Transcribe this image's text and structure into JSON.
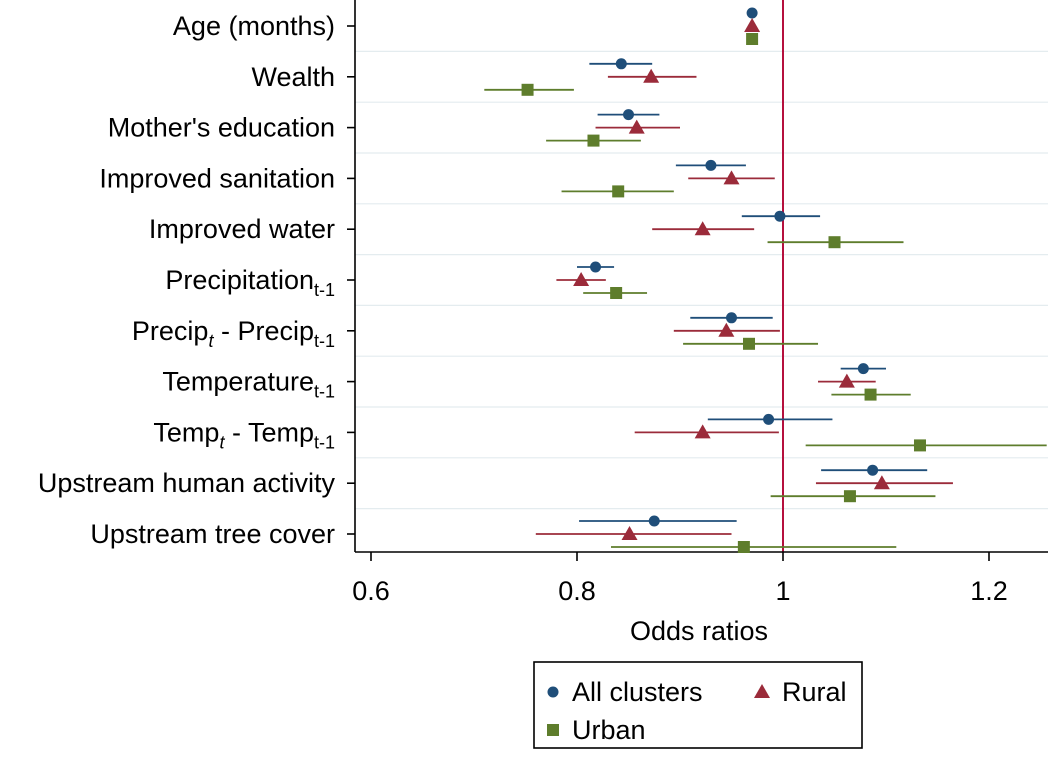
{
  "chart_data": {
    "type": "scatter",
    "subtype": "coefficient plot with confidence intervals",
    "xlabel": "Odds ratios",
    "xlim": [
      0.6,
      1.25
    ],
    "xticks": [
      "0.6",
      "0.8",
      "1",
      "1.2"
    ],
    "reference_line": 1,
    "reference_line_color": "#b5103d",
    "grid": "horizontal",
    "legend_position": "bottom",
    "categories": [
      {
        "parts": [
          {
            "t": "Age (months)"
          }
        ]
      },
      {
        "parts": [
          {
            "t": "Wealth"
          }
        ]
      },
      {
        "parts": [
          {
            "t": "Mother's education"
          }
        ]
      },
      {
        "parts": [
          {
            "t": "Improved sanitation"
          }
        ]
      },
      {
        "parts": [
          {
            "t": "Improved water"
          }
        ]
      },
      {
        "parts": [
          {
            "t": "Precipitation"
          },
          {
            "t": "t-1",
            "sub": true
          }
        ]
      },
      {
        "parts": [
          {
            "t": "Precip"
          },
          {
            "t": "t",
            "sub": true,
            "italic": true
          },
          {
            "t": " - Precip"
          },
          {
            "t": "t-1",
            "sub": true
          }
        ]
      },
      {
        "parts": [
          {
            "t": "Temperature"
          },
          {
            "t": "t-1",
            "sub": true
          }
        ]
      },
      {
        "parts": [
          {
            "t": "Temp"
          },
          {
            "t": "t",
            "sub": true,
            "italic": true
          },
          {
            "t": " - Temp"
          },
          {
            "t": "t-1",
            "sub": true
          }
        ]
      },
      {
        "parts": [
          {
            "t": "Upstream human activity"
          }
        ]
      },
      {
        "parts": [
          {
            "t": "Upstream tree cover"
          }
        ]
      }
    ],
    "series": [
      {
        "name": "All clusters",
        "marker": "circle",
        "color": "#1f4e79",
        "estimates": [
          0.97,
          0.843,
          0.85,
          0.93,
          0.997,
          0.818,
          0.95,
          1.078,
          0.986,
          1.087,
          0.875
        ],
        "ci_low": [
          0.97,
          0.812,
          0.82,
          0.896,
          0.96,
          0.8,
          0.91,
          1.056,
          0.927,
          1.037,
          0.802
        ],
        "ci_high": [
          0.97,
          0.873,
          0.88,
          0.964,
          1.036,
          0.836,
          0.99,
          1.1,
          1.048,
          1.14,
          0.955
        ]
      },
      {
        "name": "Rural",
        "marker": "triangle",
        "color": "#9b2b3a",
        "estimates": [
          0.97,
          0.872,
          0.858,
          0.95,
          0.922,
          0.804,
          0.945,
          1.062,
          0.922,
          1.096,
          0.851
        ],
        "ci_low": [
          0.97,
          0.83,
          0.818,
          0.908,
          0.873,
          0.78,
          0.894,
          1.034,
          0.856,
          1.032,
          0.76
        ],
        "ci_high": [
          0.97,
          0.916,
          0.9,
          0.992,
          0.972,
          0.828,
          0.997,
          1.09,
          0.996,
          1.165,
          0.95
        ]
      },
      {
        "name": "Urban",
        "marker": "square",
        "color": "#5e7d2c",
        "estimates": [
          0.97,
          0.752,
          0.816,
          0.84,
          1.05,
          0.838,
          0.967,
          1.085,
          1.133,
          1.065,
          0.962
        ],
        "ci_low": [
          0.97,
          0.71,
          0.77,
          0.785,
          0.985,
          0.806,
          0.903,
          1.047,
          1.022,
          0.988,
          0.833
        ],
        "ci_high": [
          0.97,
          0.797,
          0.862,
          0.894,
          1.117,
          0.868,
          1.034,
          1.124,
          1.256,
          1.148,
          1.11
        ]
      }
    ]
  }
}
